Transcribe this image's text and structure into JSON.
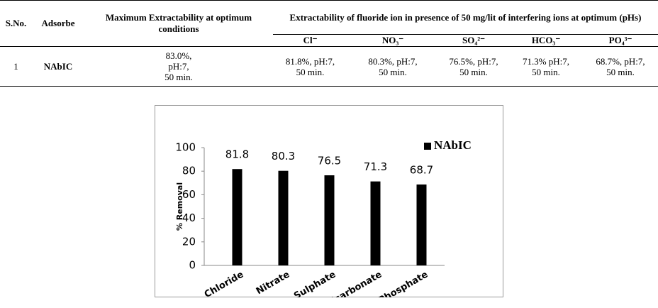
{
  "table": {
    "headers": [
      "S.No.",
      "Adsorbe",
      "Maximum Extractability at optimum conditions",
      "Extractability of fluoride ion in presence of 50 mg/lit of interfering ions at optimum (pHs)"
    ],
    "ions": [
      "Cl⁻",
      "NO₃⁻",
      "SO₄²⁻",
      "HCO₃⁻",
      "PO₄³⁻"
    ],
    "rows": [
      [
        "1",
        "NAbIC",
        [
          "83.0%,",
          "pH:7,",
          "50 min."
        ],
        [
          "81.8%, pH:7,",
          "50 min."
        ],
        [
          "80.3%, pH:7,",
          "50 min."
        ],
        [
          "76.5%, pH:7,",
          "50 min."
        ],
        [
          "71.3% pH:7,",
          "50 min."
        ],
        [
          "68.7%, pH:7,",
          "50 min."
        ]
      ]
    ]
  },
  "chart_data": {
    "type": "bar",
    "ylabel": "% Removal",
    "categories": [
      "Chloride",
      "Nitrate",
      "Sulphate",
      "Bicarbonate",
      "Phosphate"
    ],
    "series": [
      {
        "name": "NAbIC",
        "color": "#000000",
        "values": [
          81.8,
          80.3,
          76.5,
          71.3,
          68.7
        ]
      }
    ],
    "ylim": [
      0,
      100
    ],
    "yticks": [
      0,
      20,
      40,
      60,
      80,
      100
    ],
    "grid": false,
    "legend": "top-right"
  }
}
